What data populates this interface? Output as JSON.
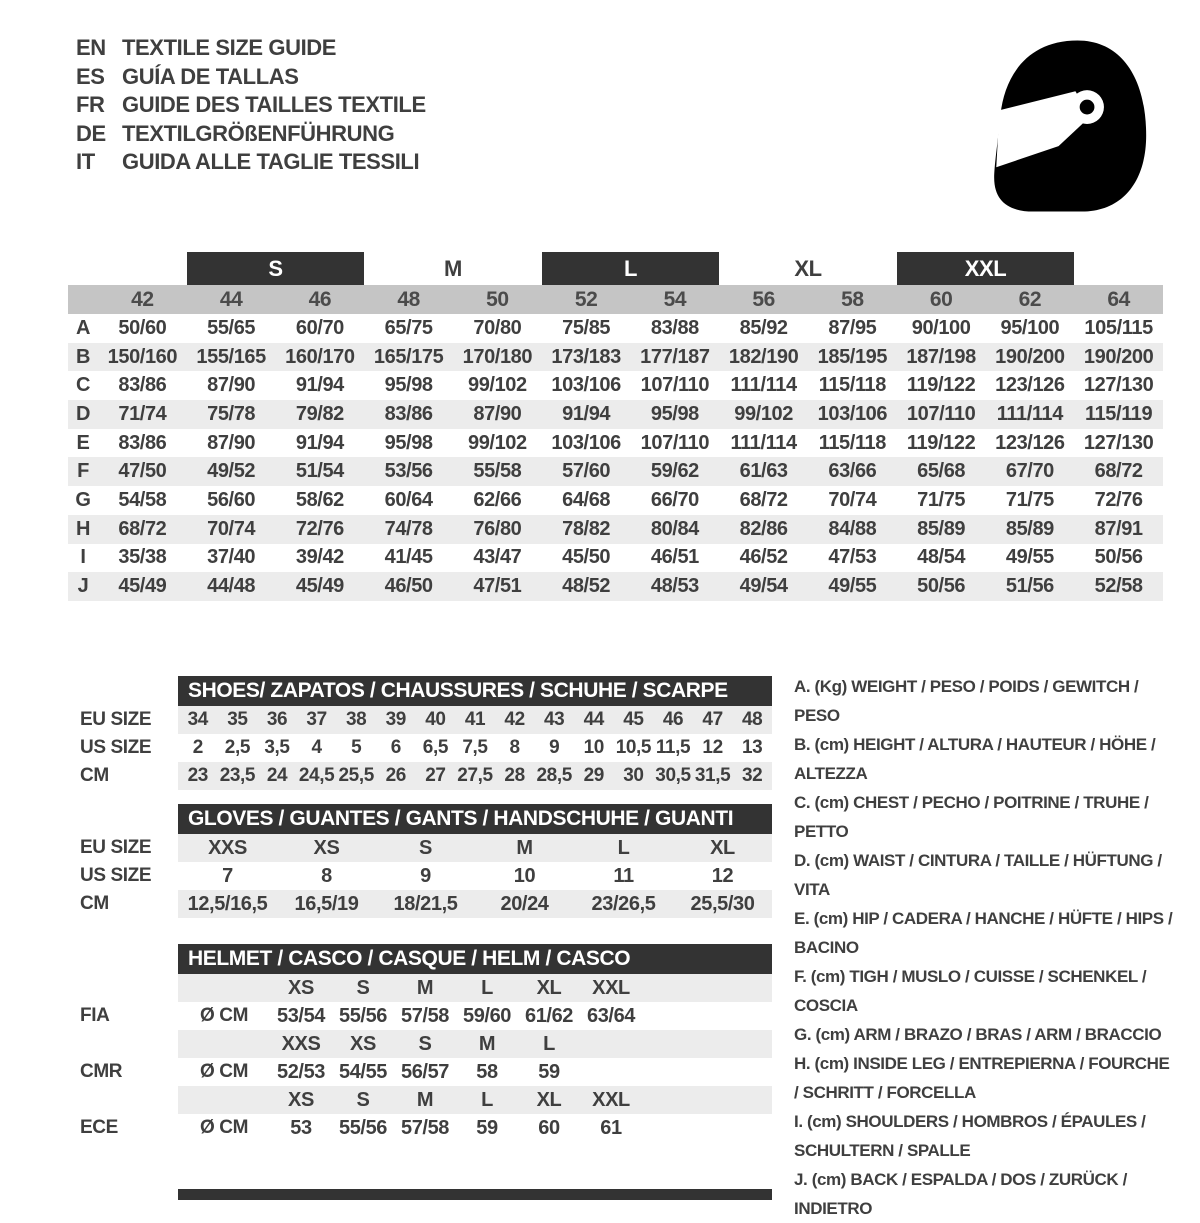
{
  "languages": [
    {
      "code": "EN",
      "label": "TEXTILE SIZE GUIDE"
    },
    {
      "code": "ES",
      "label": "GUÍA DE TALLAS"
    },
    {
      "code": "FR",
      "label": "GUIDE DES TAILLES TEXTILE"
    },
    {
      "code": "DE",
      "label": "TEXTILGRÖßENFÜHRUNG"
    },
    {
      "code": "IT",
      "label": "GUIDA ALLE TAGLIE TESSILI"
    }
  ],
  "logo": {
    "icon": "racing-helmet-icon"
  },
  "textile_table": {
    "size_groups": [
      {
        "label": "S",
        "style": "dark"
      },
      {
        "label": "M",
        "style": "light"
      },
      {
        "label": "L",
        "style": "dark"
      },
      {
        "label": "XL",
        "style": "light"
      },
      {
        "label": "XXL",
        "style": "dark"
      }
    ],
    "columns": [
      "42",
      "44",
      "46",
      "48",
      "50",
      "52",
      "54",
      "56",
      "58",
      "60",
      "62",
      "64"
    ],
    "rows": [
      {
        "label": "A",
        "values": [
          "50/60",
          "55/65",
          "60/70",
          "65/75",
          "70/80",
          "75/85",
          "83/88",
          "85/92",
          "87/95",
          "90/100",
          "95/100",
          "105/115"
        ]
      },
      {
        "label": "B",
        "values": [
          "150/160",
          "155/165",
          "160/170",
          "165/175",
          "170/180",
          "173/183",
          "177/187",
          "182/190",
          "185/195",
          "187/198",
          "190/200",
          "190/200"
        ]
      },
      {
        "label": "C",
        "values": [
          "83/86",
          "87/90",
          "91/94",
          "95/98",
          "99/102",
          "103/106",
          "107/110",
          "111/114",
          "115/118",
          "119/122",
          "123/126",
          "127/130"
        ]
      },
      {
        "label": "D",
        "values": [
          "71/74",
          "75/78",
          "79/82",
          "83/86",
          "87/90",
          "91/94",
          "95/98",
          "99/102",
          "103/106",
          "107/110",
          "111/114",
          "115/119"
        ]
      },
      {
        "label": "E",
        "values": [
          "83/86",
          "87/90",
          "91/94",
          "95/98",
          "99/102",
          "103/106",
          "107/110",
          "111/114",
          "115/118",
          "119/122",
          "123/126",
          "127/130"
        ]
      },
      {
        "label": "F",
        "values": [
          "47/50",
          "49/52",
          "51/54",
          "53/56",
          "55/58",
          "57/60",
          "59/62",
          "61/63",
          "63/66",
          "65/68",
          "67/70",
          "68/72"
        ]
      },
      {
        "label": "G",
        "values": [
          "54/58",
          "56/60",
          "58/62",
          "60/64",
          "62/66",
          "64/68",
          "66/70",
          "68/72",
          "70/74",
          "71/75",
          "71/75",
          "72/76"
        ]
      },
      {
        "label": "H",
        "values": [
          "68/72",
          "70/74",
          "72/76",
          "74/78",
          "76/80",
          "78/82",
          "80/84",
          "82/86",
          "84/88",
          "85/89",
          "85/89",
          "87/91"
        ]
      },
      {
        "label": "I",
        "values": [
          "35/38",
          "37/40",
          "39/42",
          "41/45",
          "43/47",
          "45/50",
          "46/51",
          "46/52",
          "47/53",
          "48/54",
          "49/55",
          "50/56"
        ]
      },
      {
        "label": "J",
        "values": [
          "45/49",
          "44/48",
          "45/49",
          "46/50",
          "47/51",
          "48/52",
          "48/53",
          "49/54",
          "49/55",
          "50/56",
          "51/56",
          "52/58"
        ]
      }
    ]
  },
  "shoes_table": {
    "title": "SHOES/ ZAPATOS / CHAUSSURES / SCHUHE / SCARPE",
    "rows": [
      {
        "label": "EU SIZE",
        "values": [
          "34",
          "35",
          "36",
          "37",
          "38",
          "39",
          "40",
          "41",
          "42",
          "43",
          "44",
          "45",
          "46",
          "47",
          "48"
        ]
      },
      {
        "label": "US SIZE",
        "values": [
          "2",
          "2,5",
          "3,5",
          "4",
          "5",
          "6",
          "6,5",
          "7,5",
          "8",
          "9",
          "10",
          "10,5",
          "11,5",
          "12",
          "13"
        ]
      },
      {
        "label": "CM",
        "values": [
          "23",
          "23,5",
          "24",
          "24,5",
          "25,5",
          "26",
          "27",
          "27,5",
          "28",
          "28,5",
          "29",
          "30",
          "30,5",
          "31,5",
          "32"
        ]
      }
    ]
  },
  "gloves_table": {
    "title": "GLOVES / GUANTES / GANTS / HANDSCHUHE / GUANTI",
    "rows": [
      {
        "label": "EU SIZE",
        "values": [
          "XXS",
          "XS",
          "S",
          "M",
          "L",
          "XL"
        ]
      },
      {
        "label": "US SIZE",
        "values": [
          "7",
          "8",
          "9",
          "10",
          "11",
          "12"
        ]
      },
      {
        "label": "CM",
        "values": [
          "12,5/16,5",
          "16,5/19",
          "18/21,5",
          "20/24",
          "23/26,5",
          "25,5/30"
        ]
      }
    ]
  },
  "helmet_table": {
    "title": "HELMET / CASCO / CASQUE / HELM / CASCO",
    "unit": "Ø CM",
    "bands": [
      {
        "label": "FIA",
        "sizes": [
          "XS",
          "S",
          "M",
          "L",
          "XL",
          "XXL"
        ],
        "values": [
          "53/54",
          "55/56",
          "57/58",
          "59/60",
          "61/62",
          "63/64"
        ]
      },
      {
        "label": "CMR",
        "sizes": [
          "XXS",
          "XS",
          "S",
          "M",
          "L",
          ""
        ],
        "values": [
          "52/53",
          "54/55",
          "56/57",
          "58",
          "59",
          ""
        ]
      },
      {
        "label": "ECE",
        "sizes": [
          "XS",
          "S",
          "M",
          "L",
          "XL",
          "XXL"
        ],
        "values": [
          "53",
          "55/56",
          "57/58",
          "59",
          "60",
          "61"
        ]
      }
    ]
  },
  "legend": [
    "A. (Kg) WEIGHT / PESO / POIDS / GEWITCH / PESO",
    "B. (cm) HEIGHT / ALTURA / HAUTEUR / HÖHE / ALTEZZA",
    "C. (cm) CHEST / PECHO / POITRINE / TRUHE / PETTO",
    "D. (cm) WAIST / CINTURA / TAILLE / HÜFTUNG / VITA",
    "E. (cm) HIP / CADERA / HANCHE / HÜFTE / HIPS /  BACINO",
    "F. (cm) TIGH / MUSLO / CUISSE / SCHENKEL / COSCIA",
    "G. (cm) ARM  / BRAZO / BRAS / ARM / BRACCIO",
    "H. (cm) INSIDE LEG / ENTREPIERNA / FOURCHE / SCHRITT / FORCELLA",
    "I.  (cm) SHOULDERS / HOMBROS / ÉPAULES / SCHULTERN / SPALLE",
    "J. (cm) BACK / ESPALDA / DOS / ZURÜCK / INDIETRO"
  ],
  "colors": {
    "bar_dark": "#333333",
    "band_grey": "#c5c5c5",
    "stripe_grey": "#ececec",
    "text": "#3f3f3f"
  }
}
